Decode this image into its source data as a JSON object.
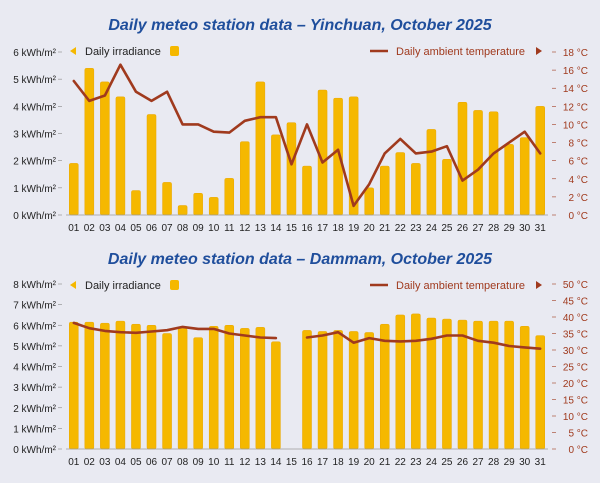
{
  "colors": {
    "background": "#e9eaf2",
    "title": "#1f4e9c",
    "bar": "#f5b800",
    "bar_edge": "#e9a600",
    "line": "#a03a1e",
    "left_axis_text": "#222222",
    "right_axis_text": "#a03a1e"
  },
  "chart_data": [
    {
      "type": "bar+line",
      "title": "Daily meteo station data – Yinchuan, October 2025",
      "categories": [
        "01",
        "02",
        "03",
        "04",
        "05",
        "06",
        "07",
        "08",
        "09",
        "10",
        "11",
        "12",
        "13",
        "14",
        "15",
        "16",
        "17",
        "18",
        "19",
        "20",
        "21",
        "22",
        "23",
        "24",
        "25",
        "26",
        "27",
        "28",
        "29",
        "30",
        "31"
      ],
      "bar_series": {
        "name": "Daily irradiance",
        "values": [
          1.9,
          5.4,
          4.9,
          4.35,
          0.9,
          3.7,
          1.2,
          0.35,
          0.8,
          0.65,
          1.35,
          2.7,
          4.9,
          2.95,
          3.4,
          1.8,
          4.6,
          4.3,
          4.35,
          1.0,
          1.8,
          2.3,
          1.9,
          3.15,
          2.05,
          4.15,
          3.85,
          3.8,
          2.6,
          2.85,
          4.0
        ]
      },
      "line_series": {
        "name": "Daily ambient temperature",
        "values": [
          14.8,
          12.6,
          13.2,
          16.6,
          13.6,
          12.6,
          13.6,
          10.0,
          10.0,
          9.2,
          9.1,
          10.4,
          10.8,
          10.8,
          5.6,
          10.0,
          5.8,
          7.2,
          1.0,
          3.4,
          6.8,
          8.4,
          6.8,
          7.0,
          7.6,
          3.8,
          5.0,
          6.8,
          8.0,
          9.2,
          6.8
        ]
      },
      "y_left": {
        "ticks": [
          "0 kWh/m²",
          "1 kWh/m²",
          "2 kWh/m²",
          "3 kWh/m²",
          "4 kWh/m²",
          "5 kWh/m²",
          "6 kWh/m²"
        ],
        "lim": [
          0,
          6
        ]
      },
      "y_right": {
        "ticks": [
          "0 °C",
          "2 °C",
          "4 °C",
          "6 °C",
          "8 °C",
          "10 °C",
          "12 °C",
          "14 °C",
          "16 °C",
          "18 °C"
        ],
        "lim": [
          0,
          18
        ]
      },
      "grid": false,
      "legend": "top"
    },
    {
      "type": "bar+line",
      "title": "Daily meteo station data – Dammam, October 2025",
      "categories": [
        "01",
        "02",
        "03",
        "04",
        "05",
        "06",
        "07",
        "08",
        "09",
        "10",
        "11",
        "12",
        "13",
        "14",
        "15",
        "16",
        "17",
        "18",
        "19",
        "20",
        "21",
        "22",
        "23",
        "24",
        "25",
        "26",
        "27",
        "28",
        "29",
        "30",
        "31"
      ],
      "bar_series": {
        "name": "Daily irradiance",
        "values": [
          6.15,
          6.15,
          6.1,
          6.2,
          6.05,
          6.0,
          5.6,
          5.85,
          5.4,
          5.95,
          6.0,
          5.85,
          5.9,
          5.2,
          null,
          5.75,
          5.7,
          5.75,
          5.7,
          5.65,
          6.05,
          6.5,
          6.55,
          6.35,
          6.3,
          6.25,
          6.2,
          6.2,
          6.2,
          5.95,
          5.5
        ]
      },
      "line_series": {
        "name": "Daily ambient temperature",
        "values": [
          38.2,
          36.6,
          35.8,
          35.4,
          35.2,
          35.6,
          36.0,
          37.0,
          36.4,
          36.4,
          35.0,
          34.4,
          33.8,
          33.6,
          null,
          33.8,
          34.4,
          35.4,
          32.2,
          33.6,
          32.8,
          32.6,
          32.8,
          33.4,
          34.4,
          34.4,
          32.8,
          32.2,
          31.2,
          30.8,
          30.4
        ]
      },
      "y_left": {
        "ticks": [
          "0 kWh/m²",
          "1 kWh/m²",
          "2 kWh/m²",
          "3 kWh/m²",
          "4 kWh/m²",
          "5 kWh/m²",
          "6 kWh/m²",
          "7 kWh/m²",
          "8 kWh/m²"
        ],
        "lim": [
          0,
          8
        ]
      },
      "y_right": {
        "ticks": [
          "0 °C",
          "5 °C",
          "10 °C",
          "15 °C",
          "20 °C",
          "25 °C",
          "30 °C",
          "35 °C",
          "40 °C",
          "45 °C",
          "50 °C"
        ],
        "lim": [
          0,
          50
        ]
      },
      "grid": false,
      "legend": "top"
    }
  ]
}
